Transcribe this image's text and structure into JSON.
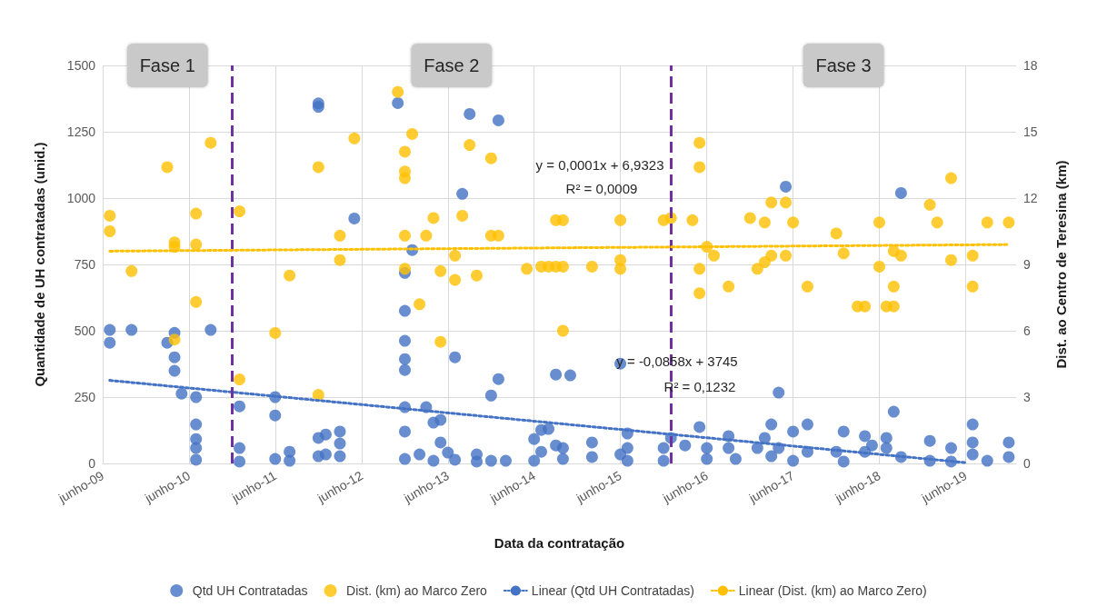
{
  "chart_data": {
    "type": "scatter",
    "xlabel": "Data da contratação",
    "ylabel": "Quantidade de UH contratadas (unid.)",
    "y2label": "Dist. ao Centro de Teresina (km)",
    "xlim": [
      "2009-06",
      "2020-01"
    ],
    "xticks": [
      {
        "value": "2009-06",
        "label": "junho-09"
      },
      {
        "value": "2010-06",
        "label": "junho-10"
      },
      {
        "value": "2011-06",
        "label": "junho-11"
      },
      {
        "value": "2012-06",
        "label": "junho-12"
      },
      {
        "value": "2013-06",
        "label": "junho-13"
      },
      {
        "value": "2014-06",
        "label": "junho-14"
      },
      {
        "value": "2015-06",
        "label": "junho-15"
      },
      {
        "value": "2016-06",
        "label": "junho-16"
      },
      {
        "value": "2017-06",
        "label": "junho-17"
      },
      {
        "value": "2018-06",
        "label": "junho-18"
      },
      {
        "value": "2019-06",
        "label": "junho-19"
      }
    ],
    "ylim": [
      0,
      1500
    ],
    "yticks": [
      0,
      250,
      500,
      750,
      1000,
      1250,
      1500
    ],
    "y2lim": [
      0,
      18
    ],
    "y2ticks": [
      0,
      3,
      6,
      9,
      12,
      15,
      18
    ],
    "grid": true,
    "legend": "bottom",
    "series": [
      {
        "name": "Qtd UH Contratadas",
        "marker": "circle",
        "color": "#4472c4",
        "x": [
          "2009-07",
          "2009-07",
          "2009-10",
          "2010-04",
          "2010-03",
          "2010-04",
          "2010-04",
          "2010-05",
          "2010-07",
          "2010-07",
          "2010-07",
          "2010-07",
          "2010-07",
          "2010-09",
          "2011-01",
          "2011-01",
          "2011-01",
          "2011-06",
          "2011-06",
          "2011-06",
          "2011-08",
          "2011-08",
          "2011-12",
          "2011-12",
          "2011-12",
          "2011-12",
          "2012-01",
          "2012-01",
          "2012-03",
          "2012-03",
          "2012-03",
          "2012-05",
          "2012-11",
          "2013-01",
          "2012-12",
          "2012-12",
          "2012-12",
          "2012-12",
          "2012-12",
          "2012-12",
          "2012-12",
          "2012-12",
          "2013-02",
          "2013-03",
          "2013-04",
          "2013-05",
          "2013-05",
          "2013-04",
          "2013-06",
          "2013-07",
          "2013-07",
          "2013-08",
          "2013-09",
          "2013-10",
          "2013-10",
          "2013-12",
          "2013-12",
          "2014-01",
          "2014-01",
          "2014-02",
          "2014-06",
          "2014-06",
          "2014-07",
          "2014-07",
          "2014-08",
          "2014-09",
          "2014-09",
          "2014-10",
          "2014-10",
          "2014-11",
          "2015-02",
          "2015-02",
          "2015-06",
          "2015-06",
          "2015-07",
          "2015-07",
          "2015-07",
          "2015-12",
          "2015-12",
          "2016-01",
          "2016-03",
          "2016-05",
          "2016-06",
          "2016-06",
          "2016-09",
          "2016-09",
          "2016-10",
          "2017-01",
          "2017-02",
          "2017-03",
          "2017-03",
          "2017-04",
          "2017-04",
          "2017-05",
          "2017-06",
          "2017-06",
          "2017-08",
          "2017-08",
          "2017-12",
          "2018-01",
          "2018-01",
          "2018-04",
          "2018-04",
          "2018-05",
          "2018-07",
          "2018-07",
          "2018-08",
          "2018-09",
          "2018-09",
          "2019-01",
          "2019-01",
          "2019-04",
          "2019-04",
          "2019-07",
          "2019-07",
          "2019-07",
          "2019-09",
          "2019-12",
          "2019-12"
        ],
        "values": [
          503,
          455,
          503,
          492,
          455,
          400,
          349,
          263,
          250,
          147,
          92,
          58,
          14,
          503,
          215,
          58,
          7,
          250,
          181,
          17,
          44,
          10,
          1344,
          1357,
          96,
          27,
          109,
          34,
          120,
          75,
          27,
          923,
          1358,
          804,
          718,
          575,
          462,
          393,
          352,
          212,
          120,
          17,
          34,
          212,
          154,
          164,
          79,
          10,
          41,
          400,
          14,
          1016,
          1317,
          34,
          7,
          256,
          10,
          1293,
          318,
          10,
          92,
          10,
          126,
          44,
          130,
          68,
          335,
          17,
          58,
          332,
          79,
          24,
          376,
          34,
          113,
          58,
          10,
          58,
          10,
          96,
          68,
          137,
          58,
          17,
          103,
          58,
          17,
          58,
          96,
          147,
          27,
          267,
          58,
          1043,
          120,
          10,
          147,
          44,
          44,
          120,
          7,
          103,
          44,
          68,
          96,
          58,
          195,
          1019,
          24,
          85,
          10,
          58,
          7,
          147,
          79,
          34,
          10,
          79,
          24
        ]
      },
      {
        "name": "Dist. (km) ao Marco Zero",
        "marker": "circle",
        "axis": "y2",
        "color": "#ffc000",
        "x": [
          "2009-07",
          "2009-07",
          "2009-10",
          "2010-03",
          "2010-04",
          "2010-04",
          "2010-04",
          "2010-07",
          "2010-07",
          "2010-07",
          "2010-09",
          "2011-01",
          "2011-01",
          "2011-06",
          "2011-08",
          "2011-12",
          "2011-12",
          "2012-03",
          "2012-03",
          "2012-05",
          "2012-11",
          "2012-12",
          "2012-12",
          "2012-12",
          "2012-12",
          "2012-12",
          "2013-01",
          "2013-02",
          "2013-03",
          "2013-04",
          "2013-05",
          "2013-05",
          "2013-07",
          "2013-07",
          "2013-08",
          "2013-09",
          "2013-10",
          "2013-12",
          "2013-12",
          "2014-01",
          "2014-05",
          "2014-07",
          "2014-08",
          "2014-09",
          "2014-09",
          "2014-10",
          "2014-10",
          "2014-10",
          "2015-02",
          "2015-06",
          "2015-06",
          "2015-06",
          "2015-12",
          "2016-01",
          "2016-04",
          "2016-05",
          "2016-05",
          "2016-06",
          "2016-07",
          "2016-05",
          "2016-05",
          "2016-09",
          "2016-12",
          "2017-02",
          "2017-03",
          "2017-01",
          "2017-02",
          "2017-05",
          "2017-06",
          "2017-03",
          "2017-05",
          "2017-08",
          "2017-12",
          "2018-01",
          "2018-03",
          "2018-04",
          "2018-07",
          "2018-08",
          "2018-06",
          "2018-06",
          "2018-08",
          "2018-08",
          "2018-09",
          "2019-01",
          "2019-02",
          "2019-04",
          "2019-04",
          "2019-07",
          "2019-07",
          "2019-09",
          "2019-12"
        ],
        "values": [
          11.2,
          10.5,
          8.7,
          13.4,
          5.6,
          10.0,
          9.8,
          9.9,
          11.3,
          7.3,
          14.5,
          11.4,
          3.8,
          5.9,
          8.5,
          13.4,
          3.1,
          10.3,
          9.2,
          14.7,
          16.8,
          14.1,
          13.2,
          12.9,
          10.3,
          8.8,
          14.9,
          7.2,
          10.3,
          11.1,
          8.7,
          5.5,
          9.4,
          8.3,
          11.2,
          14.4,
          8.5,
          13.8,
          10.3,
          10.3,
          8.8,
          8.9,
          8.9,
          8.9,
          11.0,
          11.0,
          8.9,
          6.0,
          8.9,
          11.0,
          9.2,
          8.8,
          11.0,
          11.1,
          11.0,
          14.5,
          13.4,
          9.8,
          9.4,
          8.8,
          7.7,
          8.0,
          11.1,
          10.9,
          11.8,
          8.8,
          9.1,
          11.8,
          10.9,
          9.4,
          9.4,
          8.0,
          10.4,
          9.5,
          7.1,
          7.1,
          7.1,
          7.1,
          10.9,
          8.9,
          8.0,
          9.6,
          9.4,
          11.7,
          10.9,
          12.9,
          9.2,
          9.4,
          8.0,
          10.9,
          10.9
        ]
      },
      {
        "name": "Linear (Qtd UH Contratadas)",
        "type": "line",
        "marker": "none",
        "line_style": "dotted",
        "color": "#4472c4",
        "x": [
          "2009-07",
          "2019-06"
        ],
        "values": [
          313,
          3
        ]
      },
      {
        "name": "Linear (Dist. (km) ao Marco Zero)",
        "type": "line",
        "marker": "none",
        "line_style": "dotted",
        "axis": "y2",
        "color": "#ffc000",
        "x": [
          "2009-07",
          "2019-12"
        ],
        "values": [
          9.6,
          9.9
        ]
      }
    ],
    "ref_lines": [
      {
        "axis": "x",
        "value": "2010-12",
        "color": "#7030a0",
        "line_style": "dashed"
      },
      {
        "axis": "x",
        "value": "2016-01",
        "color": "#7030a0",
        "line_style": "dashed"
      }
    ],
    "annotations": [
      "Fase 1",
      "Fase 2",
      "Fase 3",
      "y = 0,0001x + 6,9323",
      "R² = 0,0009",
      "y = -0,0858x + 3745",
      "R² = 0,1232"
    ]
  }
}
